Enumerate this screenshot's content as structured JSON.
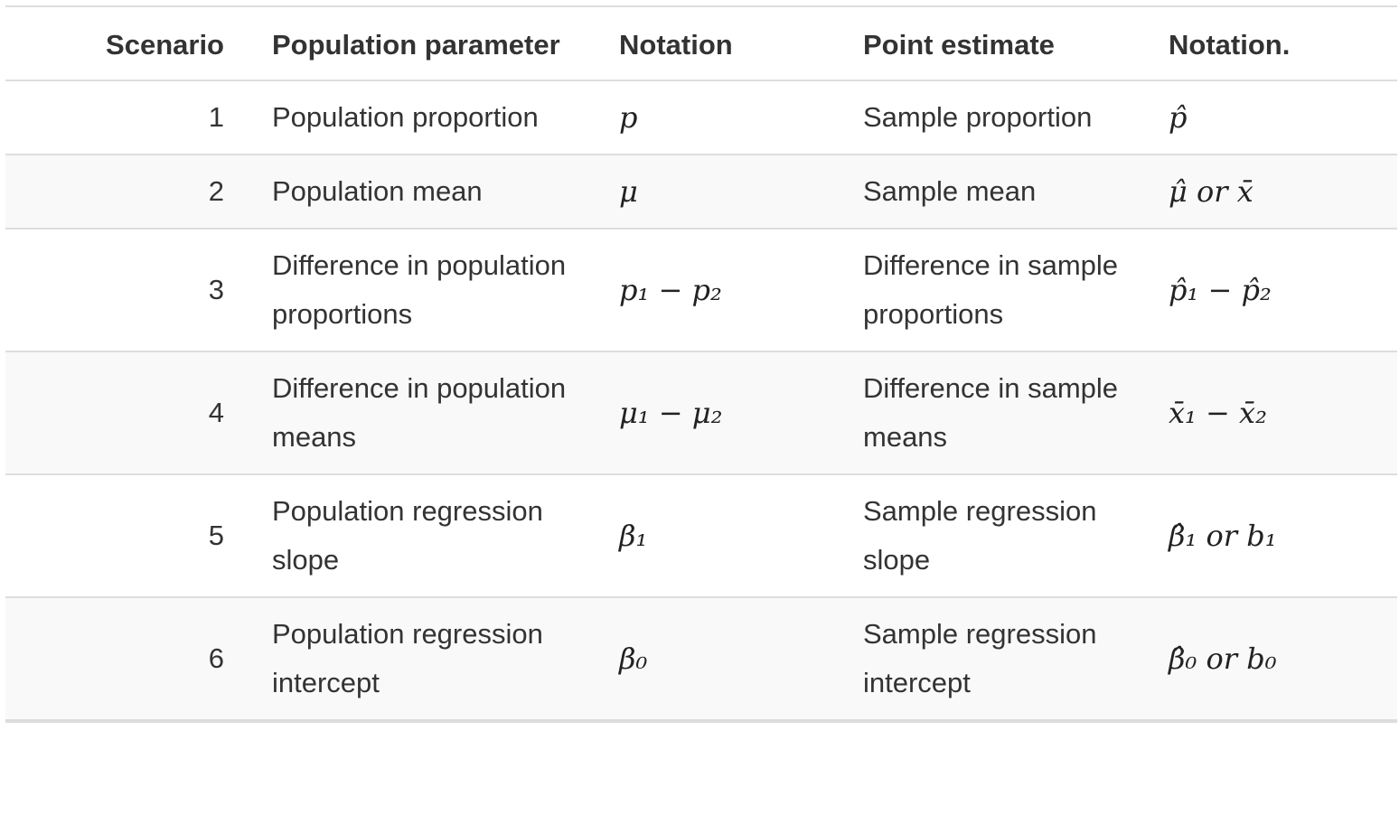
{
  "headers": [
    "Scenario",
    "Population parameter",
    "Notation",
    "Point estimate",
    "Notation."
  ],
  "rows": [
    {
      "scenario": "1",
      "parameter": "Population proportion",
      "notation": "p",
      "estimate": "Sample proportion",
      "estimate_notation": "p̂"
    },
    {
      "scenario": "2",
      "parameter": "Population mean",
      "notation": "μ",
      "estimate": "Sample mean",
      "estimate_notation": "μ̂ or x̄"
    },
    {
      "scenario": "3",
      "parameter": "Difference in population proportions",
      "notation": "p₁ − p₂",
      "estimate": "Difference in sample proportions",
      "estimate_notation": "p̂₁ − p̂₂"
    },
    {
      "scenario": "4",
      "parameter": "Difference in population means",
      "notation": "μ₁ − μ₂",
      "estimate": "Difference in sample means",
      "estimate_notation": "x̄₁ − x̄₂"
    },
    {
      "scenario": "5",
      "parameter": "Population regression slope",
      "notation": "β₁",
      "estimate": "Sample regression slope",
      "estimate_notation": "β̂₁ or b₁"
    },
    {
      "scenario": "6",
      "parameter": "Population regression intercept",
      "notation": "β₀",
      "estimate": "Sample regression intercept",
      "estimate_notation": "β̂₀ or b₀"
    }
  ]
}
